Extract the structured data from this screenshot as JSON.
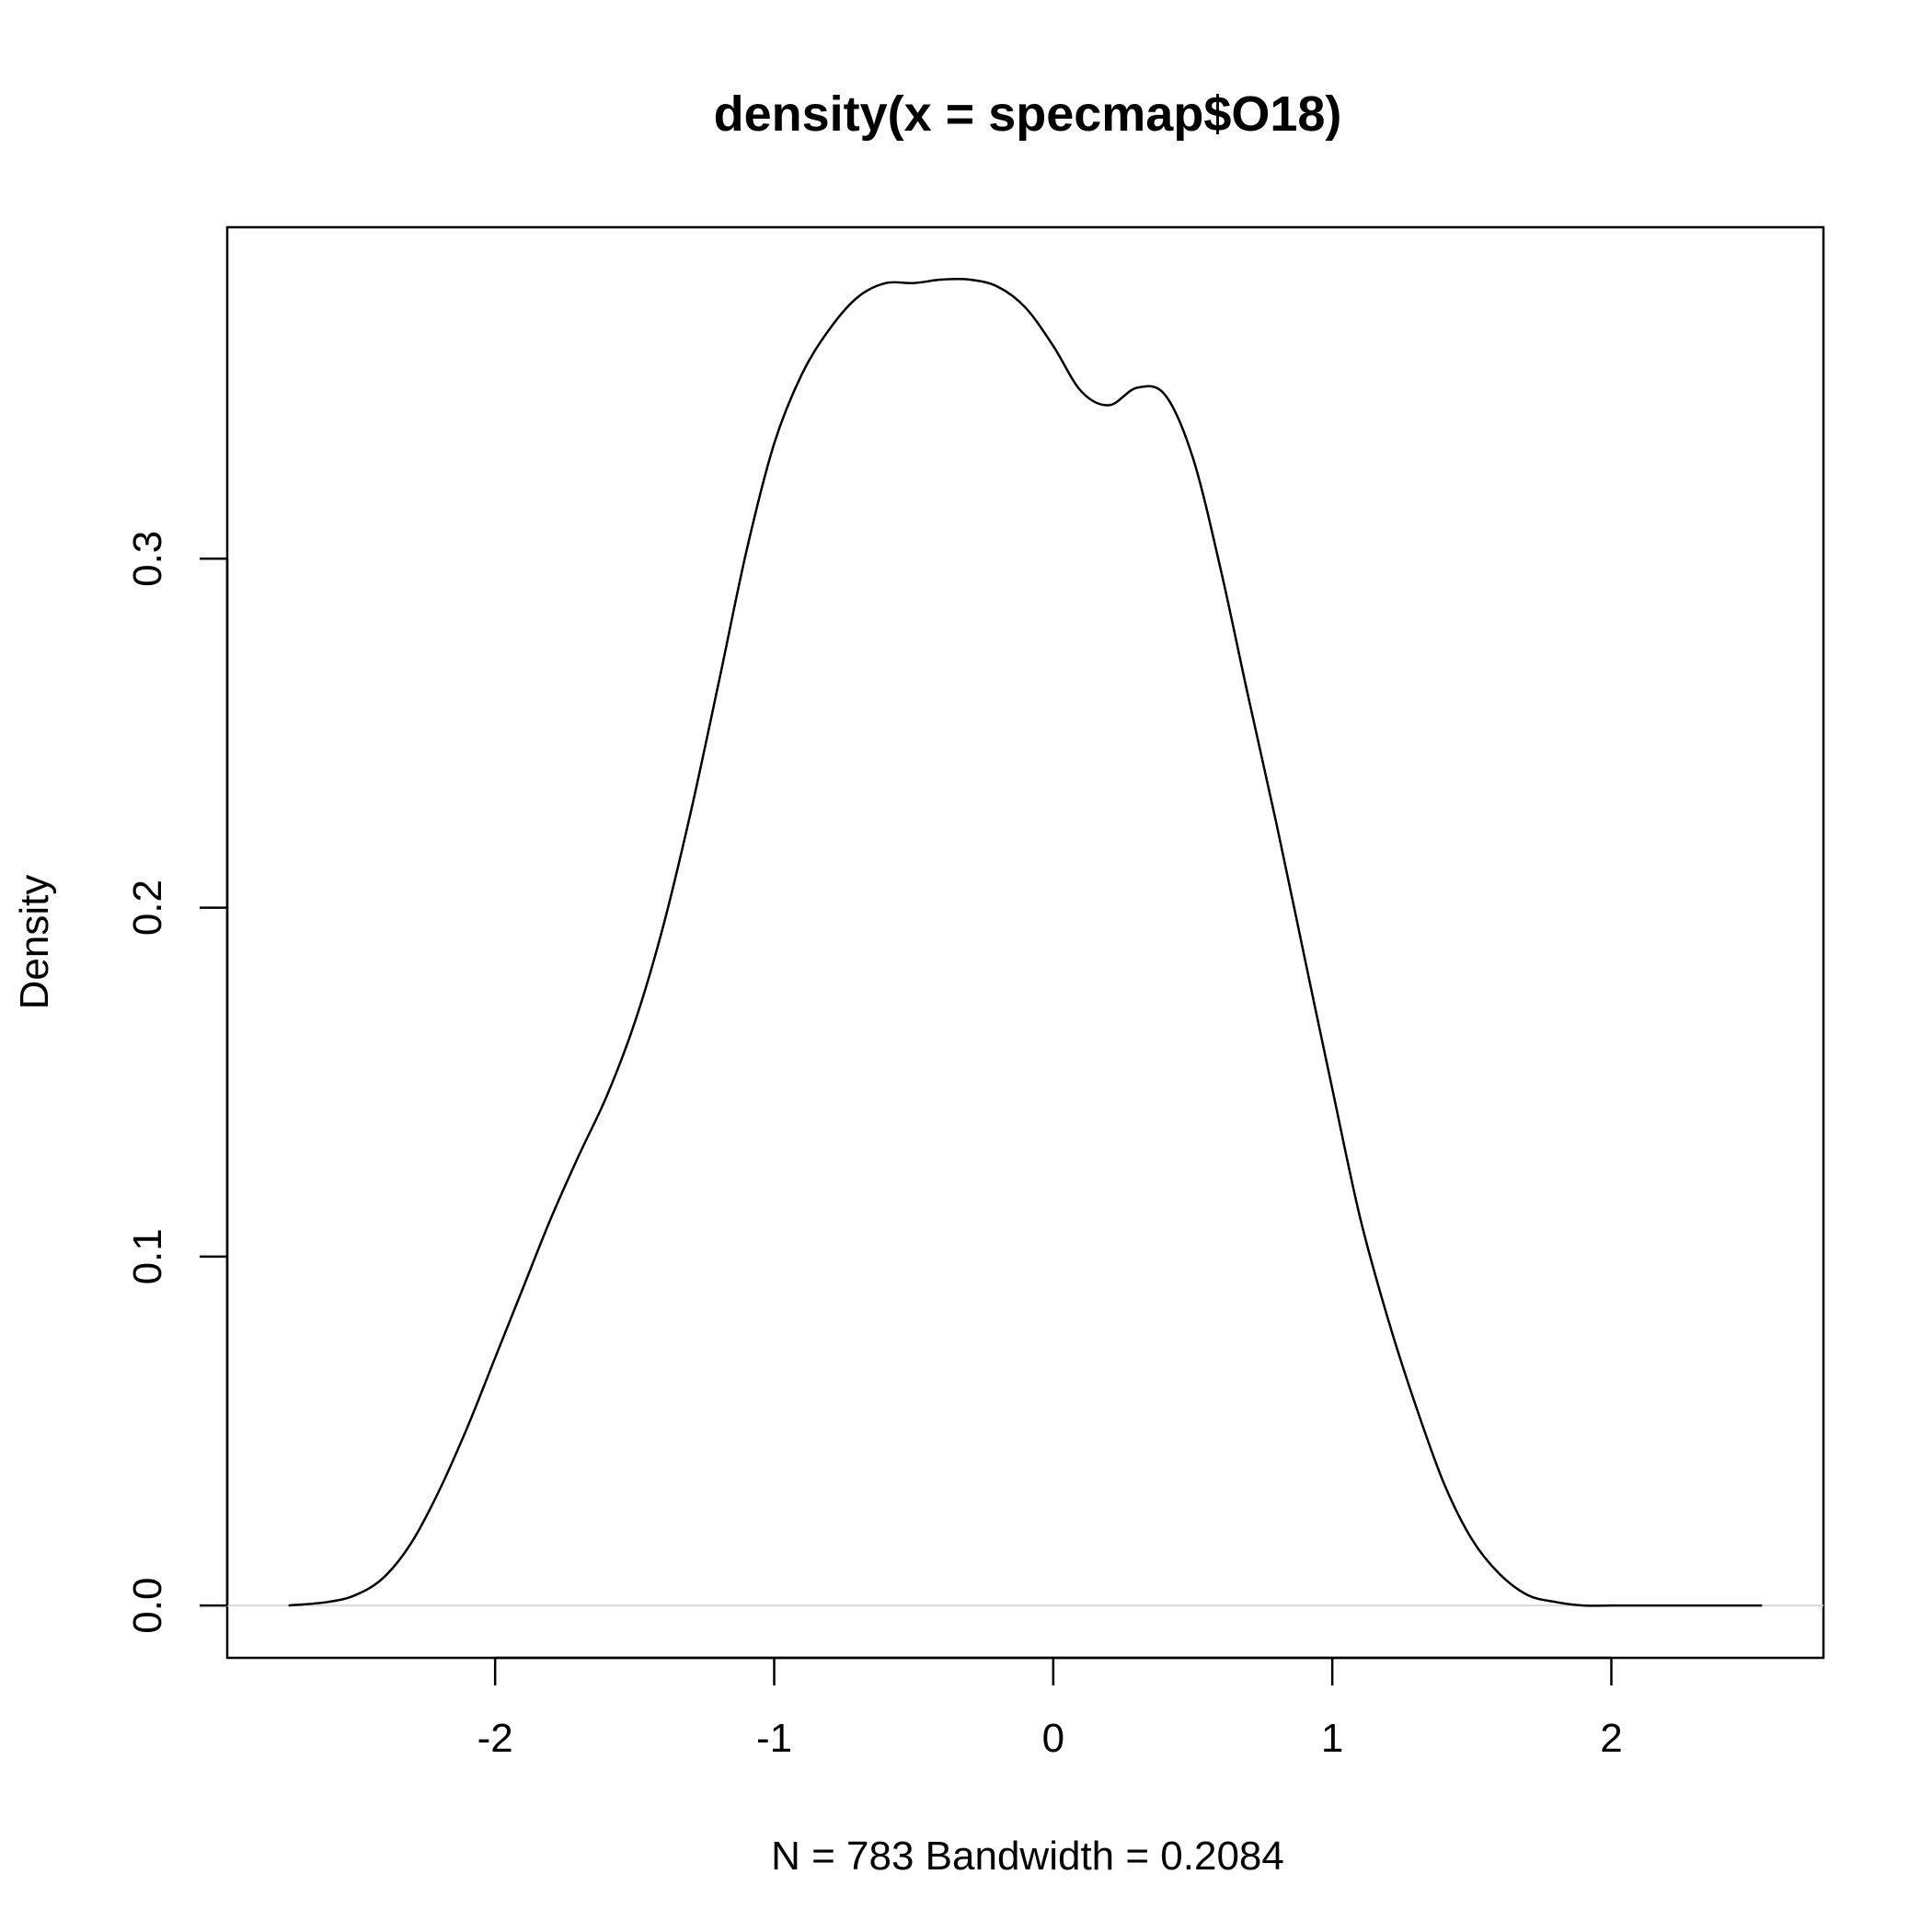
{
  "chart_data": {
    "type": "line",
    "title": "density(x = specmap$O18)",
    "xlabel": "N = 783   Bandwidth = 0.2084",
    "ylabel": "Density",
    "xlim": [
      -2.96,
      2.76
    ],
    "ylim": [
      -0.015,
      0.395
    ],
    "x_ticks": [
      -2,
      -1,
      0,
      1,
      2
    ],
    "x_tick_labels": [
      "-2",
      "-1",
      "0",
      "1",
      "2"
    ],
    "y_ticks": [
      0.0,
      0.1,
      0.2,
      0.3
    ],
    "y_tick_labels": [
      "0.0",
      "0.1",
      "0.2",
      "0.3"
    ],
    "grid": false,
    "zero_line": true,
    "colors": {
      "line": "#000000",
      "zero_line": "#d9d9d9",
      "frame": "#000000"
    },
    "series": [
      {
        "x": [
          -2.74,
          -2.6,
          -2.5,
          -2.4,
          -2.3,
          -2.2,
          -2.1,
          -2.0,
          -1.9,
          -1.8,
          -1.7,
          -1.6,
          -1.5,
          -1.4,
          -1.3,
          -1.2,
          -1.1,
          -1.0,
          -0.9,
          -0.8,
          -0.7,
          -0.6,
          -0.5,
          -0.4,
          -0.3,
          -0.2,
          -0.1,
          0.0,
          0.1,
          0.2,
          0.3,
          0.4,
          0.5,
          0.6,
          0.7,
          0.8,
          0.9,
          1.0,
          1.1,
          1.2,
          1.3,
          1.4,
          1.5,
          1.6,
          1.7,
          1.8,
          1.9,
          2.0,
          2.1,
          2.2,
          2.3,
          2.4,
          2.54
        ],
        "y": [
          0.0,
          0.001,
          0.003,
          0.008,
          0.018,
          0.033,
          0.051,
          0.071,
          0.091,
          0.111,
          0.129,
          0.146,
          0.167,
          0.194,
          0.227,
          0.264,
          0.302,
          0.333,
          0.353,
          0.366,
          0.375,
          0.379,
          0.379,
          0.38,
          0.38,
          0.378,
          0.372,
          0.361,
          0.348,
          0.344,
          0.349,
          0.347,
          0.329,
          0.297,
          0.26,
          0.224,
          0.186,
          0.148,
          0.111,
          0.082,
          0.057,
          0.035,
          0.019,
          0.009,
          0.003,
          0.001,
          0.0,
          0.0,
          0.0,
          0.0,
          0.0,
          0.0,
          0.0
        ]
      }
    ]
  }
}
